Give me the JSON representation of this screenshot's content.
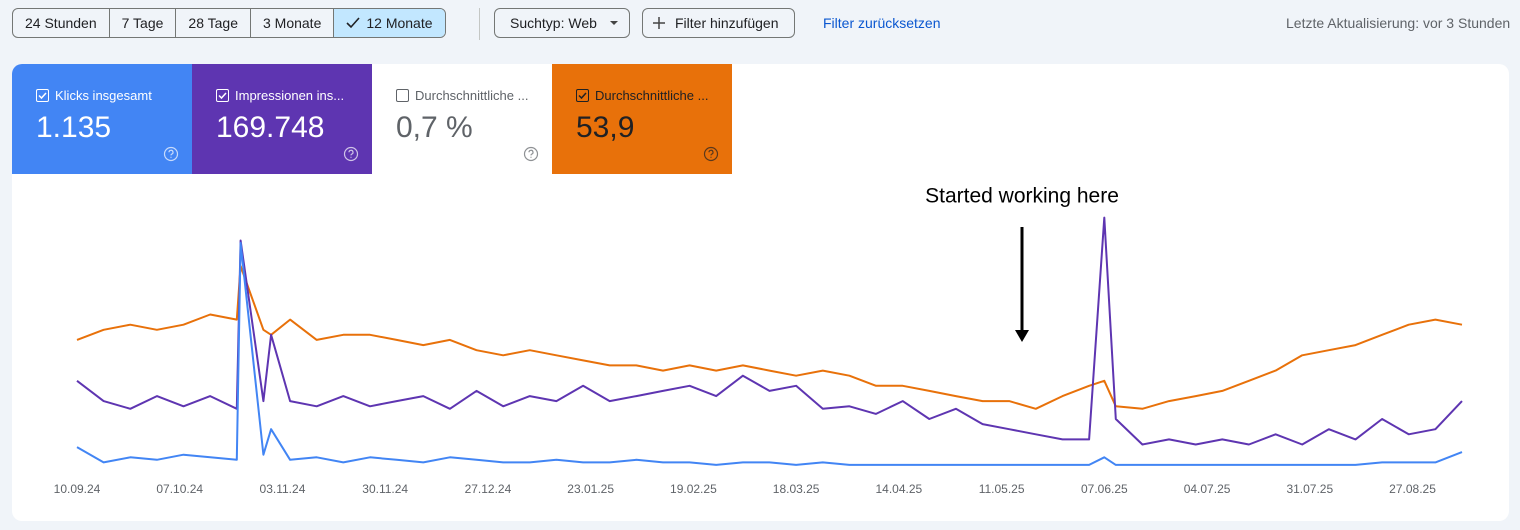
{
  "toolbar": {
    "ranges": [
      {
        "label": "24 Stunden",
        "selected": false
      },
      {
        "label": "7 Tage",
        "selected": false
      },
      {
        "label": "28 Tage",
        "selected": false
      },
      {
        "label": "3 Monate",
        "selected": false
      },
      {
        "label": "12 Monate",
        "selected": true
      }
    ],
    "search_type": "Suchtyp: Web",
    "add_filter": "Filter hinzufügen",
    "reset_filter": "Filter zurücksetzen",
    "last_update": "Letzte Aktualisierung: vor 3 Stunden"
  },
  "metrics": [
    {
      "label": "Klicks insgesamt",
      "value": "1.135",
      "checked": true,
      "color": "#4285f4",
      "text_color": "#ffffff"
    },
    {
      "label": "Impressionen ins...",
      "value": "169.748",
      "checked": true,
      "color": "#5e35b1",
      "text_color": "#ffffff"
    },
    {
      "label": "Durchschnittliche ...",
      "value": "0,7 %",
      "checked": false,
      "color": "#ffffff",
      "text_color": "#5f6368"
    },
    {
      "label": "Durchschnittliche ...",
      "value": "53,9",
      "checked": true,
      "color": "#e8710a",
      "text_color": "#202124"
    }
  ],
  "chart_data": {
    "type": "line",
    "annotation": "Started working here",
    "x": [
      0,
      7,
      14,
      21,
      28,
      35,
      42,
      43,
      49,
      51,
      56,
      63,
      70,
      77,
      84,
      91,
      98,
      105,
      112,
      119,
      126,
      133,
      140,
      147,
      154,
      161,
      168,
      175,
      182,
      189,
      196,
      203,
      210,
      217,
      224,
      231,
      238,
      245,
      252,
      259,
      266,
      270,
      273,
      280,
      287,
      294,
      301,
      308,
      315,
      322,
      329,
      336,
      343,
      350,
      357,
      364
    ],
    "xlim": [
      0,
      364
    ],
    "xticks": [
      {
        "value": 0,
        "label": "10.09.24"
      },
      {
        "value": 27,
        "label": "07.10.24"
      },
      {
        "value": 54,
        "label": "03.11.24"
      },
      {
        "value": 81,
        "label": "30.11.24"
      },
      {
        "value": 108,
        "label": "27.12.24"
      },
      {
        "value": 135,
        "label": "23.01.25"
      },
      {
        "value": 162,
        "label": "19.02.25"
      },
      {
        "value": 189,
        "label": "18.03.25"
      },
      {
        "value": 216,
        "label": "14.04.25"
      },
      {
        "value": 243,
        "label": "11.05.25"
      },
      {
        "value": 270,
        "label": "07.06.25"
      },
      {
        "value": 297,
        "label": "04.07.25"
      },
      {
        "value": 324,
        "label": "31.07.25"
      },
      {
        "value": 351,
        "label": "27.08.25"
      }
    ],
    "ylim": [
      0,
      100
    ],
    "series": [
      {
        "color": "#e8710a",
        "values": [
          51,
          55,
          57,
          55,
          57,
          61,
          59,
          80,
          55,
          53,
          59,
          51,
          53,
          53,
          51,
          49,
          51,
          47,
          45,
          47,
          45,
          43,
          41,
          41,
          39,
          41,
          39,
          41,
          39,
          37,
          39,
          37,
          33,
          33,
          31,
          29,
          27,
          27,
          24,
          29,
          33,
          35,
          25,
          24,
          27,
          29,
          31,
          35,
          39,
          45,
          47,
          49,
          53,
          57,
          59,
          57
        ]
      },
      {
        "color": "#5e35b1",
        "values": [
          35,
          27,
          24,
          29,
          25,
          29,
          24,
          90,
          27,
          53,
          27,
          25,
          29,
          25,
          27,
          29,
          24,
          31,
          25,
          29,
          27,
          33,
          27,
          29,
          31,
          33,
          29,
          37,
          31,
          33,
          24,
          25,
          22,
          27,
          20,
          24,
          18,
          16,
          14,
          12,
          12,
          99,
          20,
          10,
          12,
          10,
          12,
          10,
          14,
          10,
          16,
          12,
          20,
          14,
          16,
          27
        ]
      },
      {
        "color": "#4285f4",
        "values": [
          9,
          3,
          5,
          4,
          6,
          5,
          4,
          89,
          6,
          16,
          4,
          5,
          3,
          5,
          4,
          3,
          5,
          4,
          3,
          3,
          4,
          3,
          3,
          4,
          3,
          3,
          2,
          3,
          3,
          2,
          3,
          2,
          2,
          2,
          2,
          2,
          2,
          2,
          2,
          2,
          2,
          5,
          2,
          2,
          2,
          2,
          2,
          2,
          2,
          2,
          2,
          2,
          3,
          3,
          3,
          7
        ]
      }
    ]
  }
}
